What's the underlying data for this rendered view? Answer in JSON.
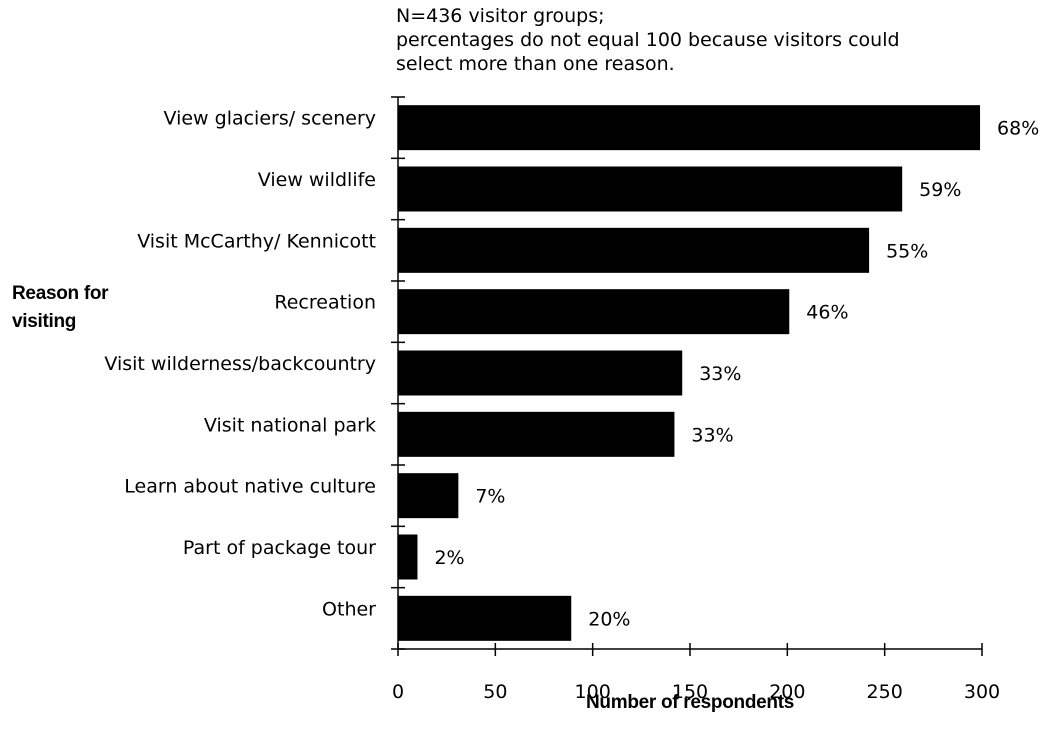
{
  "chart_data": {
    "type": "bar",
    "orientation": "horizontal",
    "note": [
      "N=436 visitor groups;",
      "percentages do not equal 100 because visitors could",
      "select more than one reason."
    ],
    "ylabel": [
      "Reason for",
      "visiting"
    ],
    "xlabel": "Number of respondents",
    "xlim": [
      0,
      300
    ],
    "xticks": [
      0,
      50,
      100,
      150,
      200,
      250,
      300
    ],
    "grid": false,
    "categories": [
      "View glaciers/ scenery",
      "View wildlife",
      "Visit McCarthy/ Kennicott",
      "Recreation",
      "Visit wilderness/backcountry",
      "Visit national park",
      "Learn about native culture",
      "Part of package tour",
      "Other"
    ],
    "values": [
      299,
      259,
      242,
      201,
      146,
      142,
      31,
      10,
      89
    ],
    "labels": [
      "68%",
      "59%",
      "55%",
      "46%",
      "33%",
      "33%",
      "7%",
      "2%",
      "20%"
    ],
    "bar_color": "#000000"
  }
}
